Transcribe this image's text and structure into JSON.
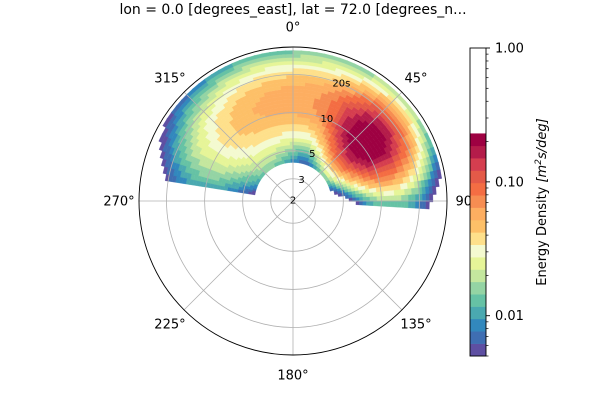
{
  "chart_data": {
    "type": "polar-contour",
    "title": "lon = 0.0 [degrees_east], lat = 72.0 [degrees_n...",
    "theta_direction": "clockwise",
    "theta_zero": "north",
    "theta_ticks": [
      "0°",
      "45°",
      "90°",
      "135°",
      "180°",
      "225°",
      "270°",
      "315°"
    ],
    "radial_scale": "log",
    "radial_range": [
      2,
      33
    ],
    "radial_ticks": [
      "2",
      "3",
      "5",
      "10",
      "20s"
    ],
    "radial_tick_values": [
      2,
      3,
      5,
      10,
      20
    ],
    "grid": true,
    "colormap": "Spectral_r",
    "colorbar": {
      "label": "Energy Density [m²s/deg]",
      "label_main": "Energy Density ",
      "label_units": "[m",
      "label_sup": "2",
      "label_units_end": "s/deg]",
      "scale": "log",
      "range": [
        0.005,
        1.0
      ],
      "tick_labels": [
        "1.00",
        "0.10",
        "0.01"
      ],
      "tick_values": [
        1.0,
        0.1,
        0.01
      ],
      "filled_max": 0.23,
      "colors": [
        "#5e4fa2",
        "#3f6eb2",
        "#3288bd",
        "#4aa9b0",
        "#66c2a5",
        "#94d4a4",
        "#c4e79e",
        "#e6f598",
        "#f4fad0",
        "#fee08b",
        "#fdc068",
        "#fdae61",
        "#f68d52",
        "#f46d43",
        "#e45a48",
        "#d53e4f",
        "#b41c4a",
        "#9e0142"
      ]
    },
    "energy_field": {
      "blobs": [
        {
          "theta_deg": 52,
          "r": 11,
          "theta_width_deg": 15,
          "log_r_width": 0.18,
          "peak": 0.22
        },
        {
          "theta_deg": 12,
          "r": 13,
          "theta_width_deg": 40,
          "log_r_width": 0.22,
          "peak": 0.055
        },
        {
          "theta_deg": 320,
          "r": 8,
          "theta_width_deg": 28,
          "log_r_width": 0.28,
          "peak": 0.022
        }
      ],
      "theta_min_deg": 278,
      "theta_max_deg": 452,
      "r_min": 4,
      "r_max": 30,
      "floor": 0.005
    }
  }
}
